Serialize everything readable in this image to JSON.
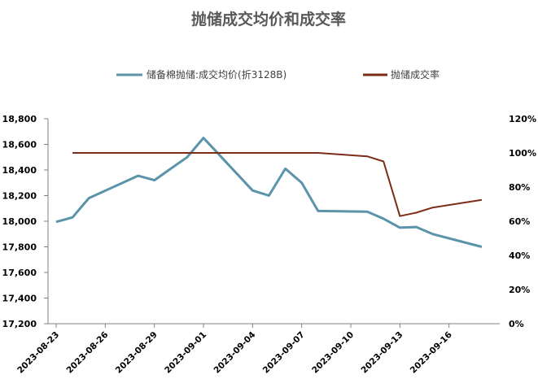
{
  "chart_data": {
    "type": "line",
    "title": "抛储成交均价和成交率",
    "x_ticks": [
      "2023-08-23",
      "2023-08-26",
      "2023-08-29",
      "2023-09-01",
      "2023-09-04",
      "2023-09-07",
      "2023-09-10",
      "2023-09-13",
      "2023-09-16"
    ],
    "x": [
      "2023-08-23",
      "2023-08-24",
      "2023-08-25",
      "2023-08-28",
      "2023-08-29",
      "2023-08-30",
      "2023-08-31",
      "2023-09-01",
      "2023-09-04",
      "2023-09-05",
      "2023-09-06",
      "2023-09-07",
      "2023-09-08",
      "2023-09-11",
      "2023-09-12",
      "2023-09-13",
      "2023-09-14",
      "2023-09-15",
      "2023-09-18"
    ],
    "y_left": {
      "range": [
        17200,
        18800
      ],
      "step": 200
    },
    "y_right": {
      "range": [
        0,
        120
      ],
      "step": 20,
      "format": "percent"
    },
    "legend_position": "top",
    "grid": false,
    "series": [
      {
        "name": "储备棉抛储:成交均价(折3128B)",
        "axis": "left",
        "color": "#5b94aa",
        "values": [
          17995,
          18030,
          18180,
          18355,
          18320,
          18410,
          18500,
          18650,
          18240,
          18200,
          18410,
          18300,
          18080,
          18075,
          18020,
          17950,
          17955,
          17900,
          17800
        ]
      },
      {
        "name": "抛储成交率",
        "axis": "right",
        "color": "#7b2c16",
        "values": [
          null,
          100,
          100,
          100,
          100,
          100,
          100,
          100,
          100,
          100,
          100,
          100,
          100,
          98,
          95,
          63,
          65,
          68,
          72.5
        ]
      }
    ]
  }
}
